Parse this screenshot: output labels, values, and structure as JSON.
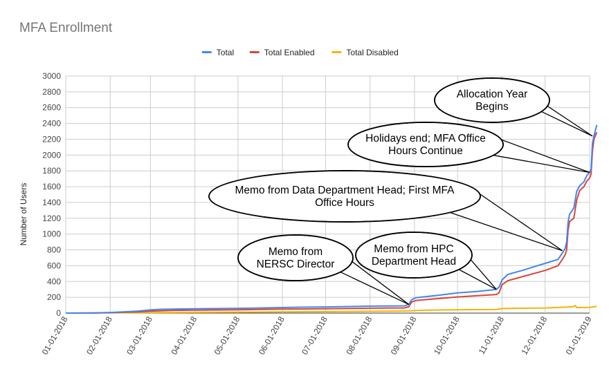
{
  "chart_data": {
    "type": "line",
    "title": "MFA Enrollment",
    "xlabel": "",
    "ylabel": "Number of Users",
    "ylim": [
      0,
      3000
    ],
    "yticks": [
      0,
      200,
      400,
      600,
      800,
      1000,
      1200,
      1400,
      1600,
      1800,
      2000,
      2200,
      2400,
      2600,
      2800,
      3000
    ],
    "xlim": [
      "2018-01-01",
      "2019-01-01"
    ],
    "xtick_labels": [
      "01-01-2018",
      "02-01-2018",
      "03-01-2018",
      "04-01-2018",
      "05-01-2018",
      "06-01-2018",
      "07-01-2018",
      "08-01-2018",
      "09-01-2018",
      "10-01-2018",
      "11-01-2018",
      "12-01-2018",
      "01-01-2019"
    ],
    "xtick_dates": [
      "2018-01-01",
      "2018-02-01",
      "2018-03-01",
      "2018-04-01",
      "2018-05-01",
      "2018-06-01",
      "2018-07-01",
      "2018-08-01",
      "2018-09-01",
      "2018-10-01",
      "2018-11-01",
      "2018-12-01",
      "2019-01-01"
    ],
    "grid": true,
    "legend_position": "top",
    "series": [
      {
        "name": "Total",
        "color": "#4285f4",
        "points": [
          [
            "2018-01-01",
            0
          ],
          [
            "2018-01-20",
            2
          ],
          [
            "2018-02-01",
            8
          ],
          [
            "2018-02-10",
            15
          ],
          [
            "2018-02-20",
            25
          ],
          [
            "2018-03-01",
            40
          ],
          [
            "2018-03-08",
            48
          ],
          [
            "2018-03-20",
            52
          ],
          [
            "2018-04-01",
            55
          ],
          [
            "2018-05-01",
            60
          ],
          [
            "2018-06-01",
            70
          ],
          [
            "2018-06-15",
            75
          ],
          [
            "2018-07-01",
            78
          ],
          [
            "2018-08-01",
            88
          ],
          [
            "2018-08-25",
            92
          ],
          [
            "2018-08-28",
            110
          ],
          [
            "2018-08-30",
            170
          ],
          [
            "2018-09-02",
            195
          ],
          [
            "2018-09-15",
            220
          ],
          [
            "2018-10-01",
            255
          ],
          [
            "2018-10-15",
            275
          ],
          [
            "2018-10-28",
            300
          ],
          [
            "2018-10-30",
            330
          ],
          [
            "2018-11-01",
            420
          ],
          [
            "2018-11-05",
            490
          ],
          [
            "2018-11-15",
            540
          ],
          [
            "2018-12-01",
            630
          ],
          [
            "2018-12-10",
            680
          ],
          [
            "2018-12-13",
            760
          ],
          [
            "2018-12-15",
            820
          ],
          [
            "2018-12-16",
            900
          ],
          [
            "2018-12-17",
            1150
          ],
          [
            "2018-12-18",
            1250
          ],
          [
            "2018-12-21",
            1330
          ],
          [
            "2018-12-23",
            1540
          ],
          [
            "2018-12-25",
            1610
          ],
          [
            "2018-12-28",
            1660
          ],
          [
            "2018-12-30",
            1740
          ],
          [
            "2019-01-01",
            1780
          ],
          [
            "2019-01-02",
            1820
          ],
          [
            "2019-01-03",
            2150
          ],
          [
            "2019-01-04",
            2240
          ],
          [
            "2019-01-06",
            2380
          ]
        ]
      },
      {
        "name": "Total Enabled",
        "color": "#db4437",
        "points": [
          [
            "2018-01-01",
            0
          ],
          [
            "2018-01-20",
            1
          ],
          [
            "2018-02-01",
            5
          ],
          [
            "2018-02-20",
            15
          ],
          [
            "2018-03-01",
            25
          ],
          [
            "2018-03-20",
            35
          ],
          [
            "2018-04-01",
            38
          ],
          [
            "2018-05-01",
            42
          ],
          [
            "2018-06-01",
            50
          ],
          [
            "2018-07-01",
            55
          ],
          [
            "2018-08-01",
            62
          ],
          [
            "2018-08-25",
            66
          ],
          [
            "2018-08-28",
            80
          ],
          [
            "2018-08-30",
            140
          ],
          [
            "2018-09-02",
            160
          ],
          [
            "2018-09-15",
            180
          ],
          [
            "2018-10-01",
            205
          ],
          [
            "2018-10-15",
            220
          ],
          [
            "2018-10-28",
            235
          ],
          [
            "2018-10-30",
            260
          ],
          [
            "2018-11-01",
            360
          ],
          [
            "2018-11-05",
            410
          ],
          [
            "2018-11-15",
            460
          ],
          [
            "2018-12-01",
            540
          ],
          [
            "2018-12-10",
            600
          ],
          [
            "2018-12-13",
            680
          ],
          [
            "2018-12-15",
            740
          ],
          [
            "2018-12-16",
            800
          ],
          [
            "2018-12-17",
            1050
          ],
          [
            "2018-12-18",
            1160
          ],
          [
            "2018-12-21",
            1200
          ],
          [
            "2018-12-23",
            1430
          ],
          [
            "2018-12-25",
            1550
          ],
          [
            "2018-12-28",
            1600
          ],
          [
            "2018-12-30",
            1670
          ],
          [
            "2019-01-01",
            1710
          ],
          [
            "2019-01-02",
            1760
          ],
          [
            "2019-01-03",
            2050
          ],
          [
            "2019-01-04",
            2200
          ],
          [
            "2019-01-06",
            2290
          ]
        ]
      },
      {
        "name": "Total Disabled",
        "color": "#f4b400",
        "points": [
          [
            "2018-01-01",
            0
          ],
          [
            "2018-03-01",
            6
          ],
          [
            "2018-05-01",
            12
          ],
          [
            "2018-07-01",
            18
          ],
          [
            "2018-08-25",
            26
          ],
          [
            "2018-08-30",
            30
          ],
          [
            "2018-09-10",
            38
          ],
          [
            "2018-10-01",
            43
          ],
          [
            "2018-10-28",
            46
          ],
          [
            "2018-11-01",
            58
          ],
          [
            "2018-12-01",
            65
          ],
          [
            "2018-12-15",
            75
          ],
          [
            "2018-12-20",
            80
          ],
          [
            "2018-12-22",
            95
          ],
          [
            "2018-12-23",
            70
          ],
          [
            "2019-01-01",
            72
          ],
          [
            "2019-01-06",
            85
          ]
        ]
      }
    ],
    "annotations": [
      {
        "lines": [
          "Allocation Year",
          "Begins"
        ],
        "date": "2019-01-03",
        "y": 2240
      },
      {
        "lines": [
          "Holidays end; MFA Office",
          "Hours Continue"
        ],
        "date": "2019-01-01",
        "y": 1780
      },
      {
        "lines": [
          "Memo from Data Department Head; First MFA",
          "Office Hours"
        ],
        "date": "2018-12-13",
        "y": 790
      },
      {
        "lines": [
          "Memo from HPC",
          "Department Head"
        ],
        "date": "2018-10-28",
        "y": 300
      },
      {
        "lines": [
          "Memo from",
          "NERSC Director"
        ],
        "date": "2018-08-28",
        "y": 110
      }
    ]
  }
}
